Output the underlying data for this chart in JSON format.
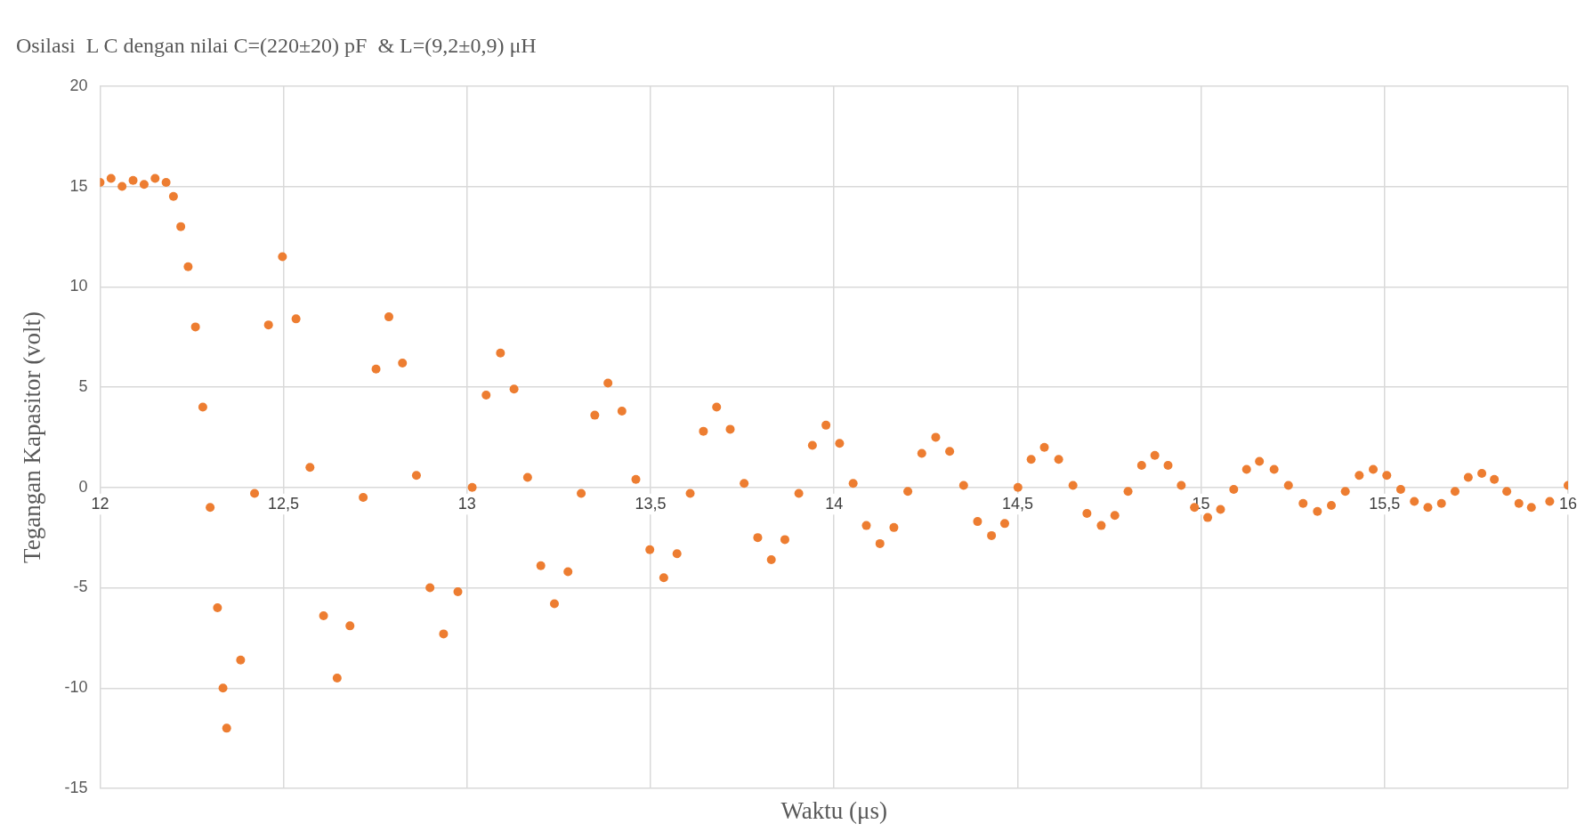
{
  "chart_data": {
    "type": "scatter",
    "title": "Osilasi  L C dengan nilai C=(220±20) pF  & L=(9,2±0,9) μH",
    "xlabel": "Waktu (μs)",
    "ylabel": "Tegangan Kapasitor (volt)",
    "series": [
      {
        "color": "#ed7d31",
        "x": [
          12,
          12.03,
          12.06,
          12.09,
          12.12,
          12.15,
          12.18,
          12.2,
          12.22,
          12.24,
          12.26,
          12.28,
          12.3,
          12.32,
          12.335,
          12.345,
          12.383,
          12.421,
          12.459,
          12.497,
          12.534,
          12.572,
          12.609,
          12.646,
          12.681,
          12.717,
          12.752,
          12.787,
          12.824,
          12.862,
          12.899,
          12.936,
          12.975,
          13.014,
          13.052,
          13.091,
          13.128,
          13.165,
          13.201,
          13.238,
          13.275,
          13.311,
          13.348,
          13.384,
          13.422,
          13.46,
          13.498,
          13.536,
          13.572,
          13.608,
          13.644,
          13.68,
          13.717,
          13.755,
          13.792,
          13.829,
          13.866,
          13.904,
          13.941,
          13.978,
          14.015,
          14.052,
          14.088,
          14.125,
          14.163,
          14.201,
          14.239,
          14.277,
          14.315,
          14.353,
          14.391,
          14.429,
          14.465,
          14.501,
          14.537,
          14.573,
          14.612,
          14.651,
          14.689,
          14.728,
          14.765,
          14.801,
          14.838,
          14.874,
          14.91,
          14.946,
          14.982,
          15.018,
          15.053,
          15.089,
          15.124,
          15.159,
          15.199,
          15.238,
          15.278,
          15.317,
          15.355,
          15.393,
          15.431,
          15.469,
          15.506,
          15.544,
          15.581,
          15.618,
          15.655,
          15.692,
          15.728,
          15.765,
          15.799,
          15.833,
          15.866,
          15.9,
          15.95,
          16
        ],
        "values": [
          15.2,
          15.4,
          15,
          15.3,
          15.1,
          15.4,
          15.2,
          14.5,
          13,
          11,
          8,
          4,
          -1,
          -6,
          -10,
          -12,
          -8.6,
          -0.3,
          8.1,
          11.5,
          8.4,
          1,
          -6.4,
          -9.5,
          -6.9,
          -0.5,
          5.9,
          8.5,
          6.2,
          0.6,
          -5,
          -7.3,
          -5.2,
          0,
          4.6,
          6.7,
          4.9,
          0.5,
          -3.9,
          -5.8,
          -4.2,
          -0.3,
          3.6,
          5.2,
          3.8,
          0.4,
          -3.1,
          -4.5,
          -3.3,
          -0.3,
          2.8,
          4,
          2.9,
          0.2,
          -2.5,
          -3.6,
          -2.6,
          -0.3,
          2.1,
          3.1,
          2.2,
          0.2,
          -1.9,
          -2.8,
          -2,
          -0.2,
          1.7,
          2.5,
          1.8,
          0.1,
          -1.7,
          -2.4,
          -1.8,
          0,
          1.4,
          2,
          1.4,
          0.1,
          -1.3,
          -1.9,
          -1.4,
          -0.2,
          1.1,
          1.6,
          1.1,
          0.1,
          -1,
          -1.5,
          -1.1,
          -0.1,
          0.9,
          1.3,
          0.9,
          0.1,
          -0.8,
          -1.2,
          -0.9,
          -0.2,
          0.6,
          0.9,
          0.6,
          -0.1,
          -0.7,
          -1,
          -0.8,
          -0.2,
          0.5,
          0.7,
          0.4,
          -0.2,
          -0.8,
          -1,
          -0.7,
          0.1
        ]
      }
    ],
    "xlim": [
      12,
      16
    ],
    "xticks": [
      12,
      {
        "value": 12.5,
        "label": "12,5"
      },
      13,
      {
        "value": 13.5,
        "label": "13,5"
      },
      14,
      {
        "value": 14.5,
        "label": "14,5"
      },
      15,
      {
        "value": 15.5,
        "label": "15,5"
      },
      16
    ],
    "ylim": [
      -15,
      20
    ],
    "yticks": [
      -15,
      -10,
      -5,
      0,
      5,
      10,
      15,
      20
    ],
    "grid": true,
    "marker": "circle",
    "legend": false
  }
}
